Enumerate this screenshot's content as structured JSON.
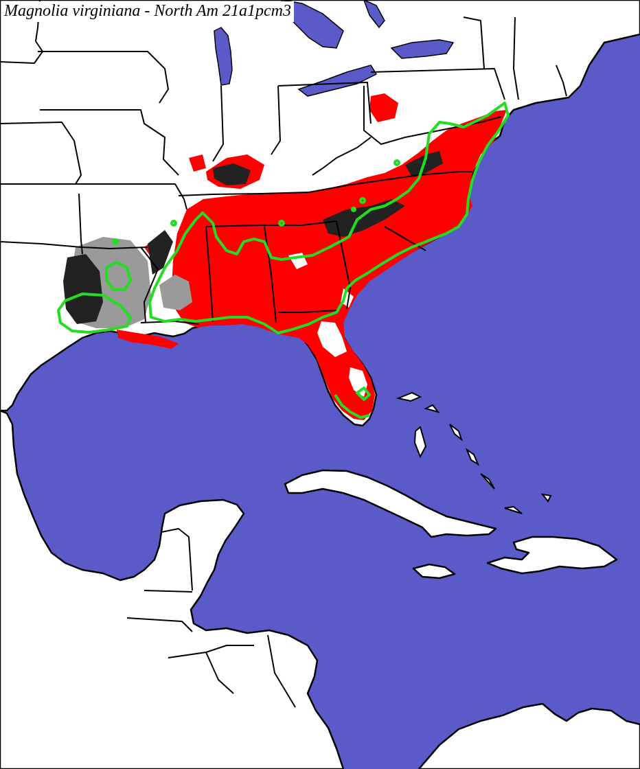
{
  "map": {
    "title": "Magnolia virginiana - North Am 21a1pcm3",
    "colors": {
      "water": "#5a5ac8",
      "land": "#ffffff",
      "borders": "#000000",
      "predicted_range": "#ff0000",
      "range_outline": "#22dd22",
      "gray_shade": "#9a9a9a",
      "dark_shade": "#222222"
    },
    "layers": [
      {
        "name": "ocean-and-lakes",
        "icon": "water-fill"
      },
      {
        "name": "land",
        "icon": "land-fill"
      },
      {
        "name": "predicted-distribution",
        "icon": "red-raster"
      },
      {
        "name": "uncertainty-shading",
        "icon": "gray-raster"
      },
      {
        "name": "political-boundaries",
        "icon": "border-lines"
      },
      {
        "name": "native-range-outline",
        "icon": "green-outline"
      }
    ]
  }
}
